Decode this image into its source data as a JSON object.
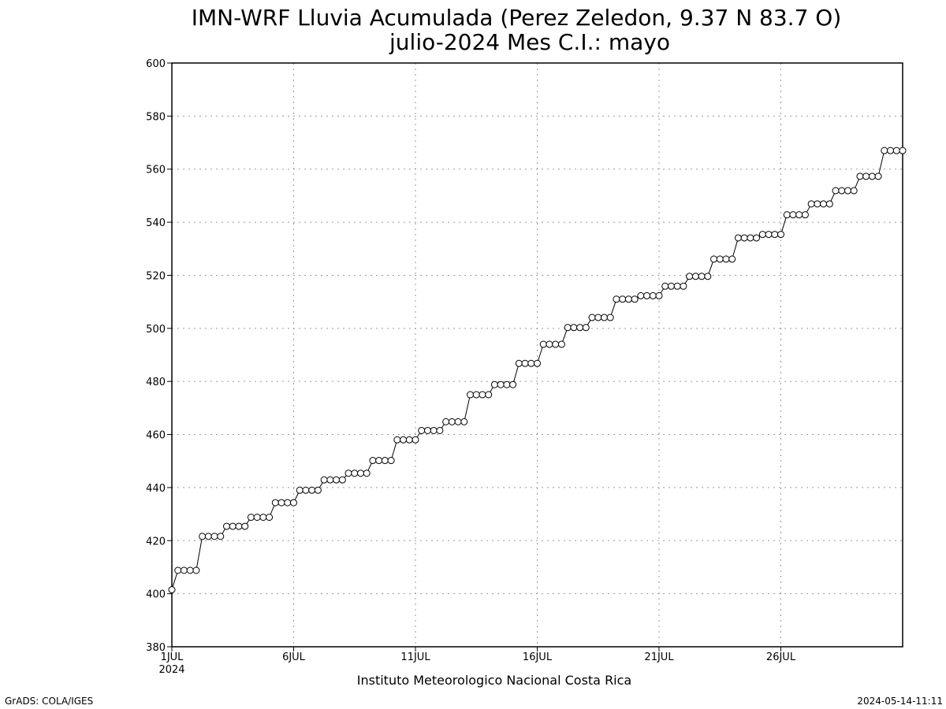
{
  "chart_data": {
    "type": "line",
    "title": "IMN-WRF  Lluvia Acumulada (Perez Zeledon, 9.37  N 83.7  O)",
    "subtitle": "julio-2024 Mes C.I.: mayo",
    "xlabel": "Instituto Meteorologico Nacional Costa Rica",
    "ylabel": "",
    "ylim": [
      380,
      600
    ],
    "yticks": [
      380,
      400,
      420,
      440,
      460,
      480,
      500,
      520,
      540,
      560,
      580,
      600
    ],
    "xlim": [
      0,
      30
    ],
    "xticks": [
      {
        "x": 0,
        "label": "1JUL",
        "sublabel": "2024"
      },
      {
        "x": 5,
        "label": "6JUL"
      },
      {
        "x": 10,
        "label": "11JUL"
      },
      {
        "x": 15,
        "label": "16JUL"
      },
      {
        "x": 20,
        "label": "21JUL"
      },
      {
        "x": 25,
        "label": "26JUL"
      }
    ],
    "grid": true,
    "series": [
      {
        "values": [
          401.5,
          408.8,
          408.8,
          408.8,
          408.8,
          421.6,
          421.6,
          421.6,
          421.6,
          425.4,
          425.4,
          425.4,
          425.4,
          428.8,
          428.8,
          428.8,
          428.8,
          434.3,
          434.3,
          434.3,
          434.3,
          439.0,
          439.0,
          439.0,
          439.0,
          442.9,
          442.9,
          442.9,
          442.9,
          445.4,
          445.4,
          445.4,
          445.4,
          450.2,
          450.2,
          450.2,
          450.2,
          458.0,
          458.0,
          458.0,
          458.0,
          461.5,
          461.5,
          461.5,
          461.5,
          464.8,
          464.8,
          464.8,
          464.8,
          475.0,
          475.0,
          475.0,
          475.0,
          478.8,
          478.8,
          478.8,
          478.8,
          486.8,
          486.8,
          486.8,
          486.8,
          494.0,
          494.0,
          494.0,
          494.0,
          500.3,
          500.3,
          500.3,
          500.3,
          504.1,
          504.1,
          504.1,
          504.1,
          511.0,
          511.0,
          511.0,
          511.0,
          512.3,
          512.3,
          512.3,
          512.3,
          515.9,
          515.9,
          515.9,
          515.9,
          519.6,
          519.6,
          519.6,
          519.6,
          526.1,
          526.1,
          526.1,
          526.1,
          534.1,
          534.1,
          534.1,
          534.1,
          535.4,
          535.4,
          535.4,
          535.4,
          542.8,
          542.8,
          542.8,
          542.8,
          546.9,
          546.9,
          546.9,
          546.9,
          551.9,
          551.9,
          551.9,
          551.9,
          557.3,
          557.3,
          557.3,
          557.3,
          567.0,
          567.0,
          567.0,
          567.0
        ],
        "step_per_point": 0.25,
        "color": "#000000"
      }
    ]
  },
  "footer": {
    "left": "GrADS: COLA/IGES",
    "right": "2024-05-14-11:11"
  }
}
